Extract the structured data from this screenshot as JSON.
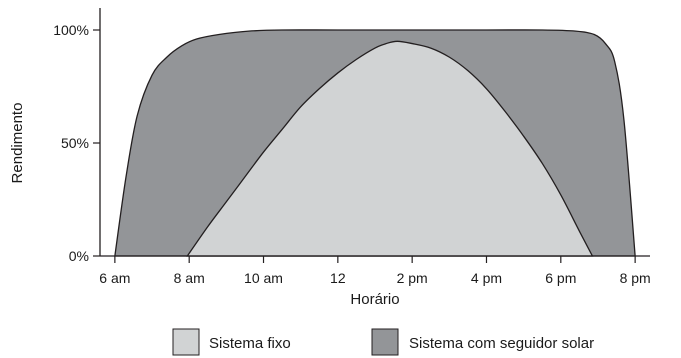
{
  "chart_data": {
    "type": "area",
    "title": "",
    "xlabel": "Horário",
    "ylabel": "Rendimento",
    "x_unit": "hour",
    "xlim": [
      5.6,
      20.4
    ],
    "ylim": [
      0,
      100
    ],
    "grid": false,
    "legend_position": "bottom",
    "x_ticks": [
      {
        "value": 6,
        "label": "6 am"
      },
      {
        "value": 8,
        "label": "8 am"
      },
      {
        "value": 10,
        "label": "10 am"
      },
      {
        "value": 12,
        "label": "12"
      },
      {
        "value": 14,
        "label": "2 pm"
      },
      {
        "value": 16,
        "label": "4 pm"
      },
      {
        "value": 18,
        "label": "6 pm"
      },
      {
        "value": 20,
        "label": "8 pm"
      }
    ],
    "y_ticks": [
      {
        "value": 0,
        "label": "0%"
      },
      {
        "value": 50,
        "label": "50%"
      },
      {
        "value": 100,
        "label": "100%"
      }
    ],
    "series": [
      {
        "name": "Sistema com seguidor solar",
        "color": "#939598",
        "x": [
          6.0,
          6.3,
          6.6,
          7.0,
          7.4,
          7.8,
          8.2,
          8.8,
          9.6,
          10.5,
          12,
          14,
          16,
          17.5,
          18.4,
          18.9,
          19.2,
          19.45,
          19.7,
          20.0
        ],
        "y": [
          0,
          35,
          62,
          80,
          88,
          93,
          96,
          98,
          99.5,
          100,
          100,
          100,
          100,
          100,
          99.5,
          98,
          94,
          86,
          60,
          0
        ]
      },
      {
        "name": "Sistema fixo",
        "color": "#d1d3d4",
        "x": [
          7.95,
          8.5,
          9.0,
          9.5,
          10.0,
          10.5,
          11.0,
          11.5,
          12.0,
          12.5,
          13.0,
          13.3,
          13.6,
          14.0,
          14.5,
          15.0,
          15.5,
          16.0,
          16.5,
          17.0,
          17.5,
          18.0,
          18.5,
          18.85
        ],
        "y": [
          0,
          13,
          24,
          35,
          46,
          56,
          66,
          74,
          81,
          87,
          92,
          94,
          95,
          94,
          92,
          88,
          82,
          74,
          64,
          53,
          41,
          27,
          11,
          0
        ]
      }
    ]
  }
}
